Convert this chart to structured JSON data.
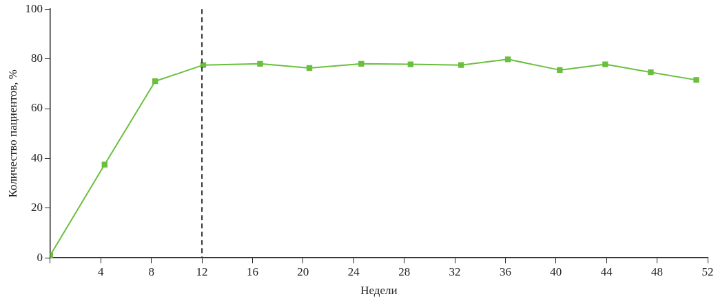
{
  "chart_data": {
    "type": "line",
    "xlabel": "Недели",
    "ylabel": "Количество пациентов, %",
    "x": [
      0,
      4.3,
      8.3,
      12.1,
      16.6,
      20.5,
      24.6,
      28.5,
      32.5,
      36.2,
      40.3,
      43.9,
      47.5,
      51.1
    ],
    "series": [
      {
        "color": "#6abf3e",
        "values": [
          1,
          37.5,
          71,
          77.5,
          78,
          76.3,
          78,
          77.8,
          77.5,
          79.8,
          75.5,
          77.8,
          74.6,
          71.5
        ]
      }
    ],
    "xlim": [
      0,
      52
    ],
    "xticks": [
      {
        "value": 0,
        "label": null
      },
      4,
      8,
      12,
      16,
      20,
      24,
      28,
      32,
      36,
      40,
      44,
      48,
      52
    ],
    "ylim": [
      0,
      100
    ],
    "yticks": [
      0,
      20,
      40,
      60,
      80,
      100
    ],
    "ref_lines": [
      {
        "axis": "x",
        "value": 12,
        "color": "#333333",
        "line_style": "dashed"
      }
    ],
    "grid": false,
    "legend": false,
    "marker": "square",
    "line_style": "solid"
  }
}
